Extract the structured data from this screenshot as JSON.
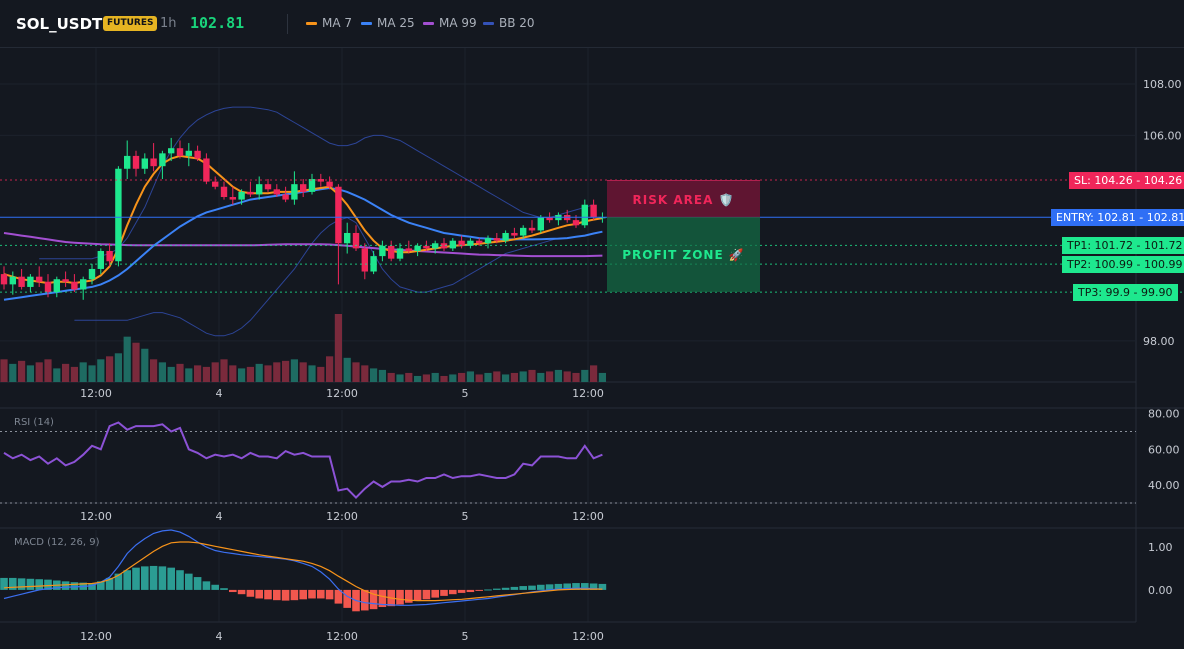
{
  "header": {
    "symbol": "SOL_USDT",
    "badge": "FUTURES",
    "timeframe": "1h",
    "last_price": "102.81",
    "indicators": [
      {
        "label": "MA 7",
        "color": "#f7931a"
      },
      {
        "label": "MA 25",
        "color": "#3b82f6"
      },
      {
        "label": "MA 99",
        "color": "#a34fd1"
      },
      {
        "label": "BB 20",
        "color": "#3452b8"
      }
    ]
  },
  "colors": {
    "up": "#1ee88e",
    "down": "#f0265a",
    "volume_up": "#1e6b62",
    "volume_down": "#7a2a3c"
  },
  "chart_data": [
    {
      "type": "candlestick",
      "title": "",
      "yticks": [
        "108.00",
        "106.00",
        "98.00"
      ],
      "xticks": [
        "12:00",
        "4",
        "12:00",
        "5",
        "12:00"
      ],
      "ylim": [
        96.4,
        109.4
      ],
      "candles": [
        {
          "o": 100.6,
          "h": 100.9,
          "l": 100.0,
          "c": 100.2
        },
        {
          "o": 100.2,
          "h": 100.7,
          "l": 99.8,
          "c": 100.5
        },
        {
          "o": 100.5,
          "h": 100.8,
          "l": 100.0,
          "c": 100.1
        },
        {
          "o": 100.1,
          "h": 100.6,
          "l": 99.9,
          "c": 100.5
        },
        {
          "o": 100.5,
          "h": 100.9,
          "l": 100.1,
          "c": 100.3
        },
        {
          "o": 100.3,
          "h": 100.6,
          "l": 99.7,
          "c": 99.9
        },
        {
          "o": 99.9,
          "h": 100.5,
          "l": 99.7,
          "c": 100.4
        },
        {
          "o": 100.4,
          "h": 100.7,
          "l": 100.1,
          "c": 100.3
        },
        {
          "o": 100.3,
          "h": 100.6,
          "l": 99.9,
          "c": 100.0
        },
        {
          "o": 100.0,
          "h": 100.5,
          "l": 99.6,
          "c": 100.4
        },
        {
          "o": 100.4,
          "h": 101.0,
          "l": 100.2,
          "c": 100.8
        },
        {
          "o": 100.8,
          "h": 101.6,
          "l": 100.6,
          "c": 101.5
        },
        {
          "o": 101.5,
          "h": 101.8,
          "l": 100.9,
          "c": 101.1
        },
        {
          "o": 101.1,
          "h": 104.8,
          "l": 100.9,
          "c": 104.7
        },
        {
          "o": 104.7,
          "h": 105.8,
          "l": 104.3,
          "c": 105.2
        },
        {
          "o": 105.2,
          "h": 105.4,
          "l": 104.4,
          "c": 104.7
        },
        {
          "o": 104.7,
          "h": 105.3,
          "l": 104.5,
          "c": 105.1
        },
        {
          "o": 105.1,
          "h": 105.7,
          "l": 104.6,
          "c": 104.8
        },
        {
          "o": 104.8,
          "h": 105.4,
          "l": 104.3,
          "c": 105.3
        },
        {
          "o": 105.3,
          "h": 105.9,
          "l": 105.0,
          "c": 105.5
        },
        {
          "o": 105.5,
          "h": 105.8,
          "l": 105.1,
          "c": 105.2
        },
        {
          "o": 105.2,
          "h": 105.7,
          "l": 104.8,
          "c": 105.4
        },
        {
          "o": 105.4,
          "h": 105.6,
          "l": 105.0,
          "c": 105.1
        },
        {
          "o": 105.1,
          "h": 105.3,
          "l": 104.1,
          "c": 104.2
        },
        {
          "o": 104.2,
          "h": 104.4,
          "l": 103.9,
          "c": 104.0
        },
        {
          "o": 104.0,
          "h": 104.2,
          "l": 103.5,
          "c": 103.6
        },
        {
          "o": 103.6,
          "h": 104.0,
          "l": 103.3,
          "c": 103.5
        },
        {
          "o": 103.5,
          "h": 103.9,
          "l": 103.3,
          "c": 103.8
        },
        {
          "o": 103.8,
          "h": 104.2,
          "l": 103.6,
          "c": 103.7
        },
        {
          "o": 103.7,
          "h": 104.4,
          "l": 103.5,
          "c": 104.1
        },
        {
          "o": 104.1,
          "h": 104.3,
          "l": 103.8,
          "c": 103.9
        },
        {
          "o": 103.9,
          "h": 104.1,
          "l": 103.6,
          "c": 103.7
        },
        {
          "o": 103.7,
          "h": 104.0,
          "l": 103.4,
          "c": 103.5
        },
        {
          "o": 103.5,
          "h": 104.6,
          "l": 103.3,
          "c": 104.1
        },
        {
          "o": 104.1,
          "h": 104.3,
          "l": 103.6,
          "c": 103.8
        },
        {
          "o": 103.8,
          "h": 104.5,
          "l": 103.7,
          "c": 104.3
        },
        {
          "o": 104.3,
          "h": 104.5,
          "l": 104.0,
          "c": 104.2
        },
        {
          "o": 104.2,
          "h": 104.4,
          "l": 103.9,
          "c": 104.0
        },
        {
          "o": 104.0,
          "h": 104.1,
          "l": 100.2,
          "c": 101.8
        },
        {
          "o": 101.8,
          "h": 102.6,
          "l": 101.4,
          "c": 102.2
        },
        {
          "o": 102.2,
          "h": 102.5,
          "l": 101.5,
          "c": 101.6
        },
        {
          "o": 101.6,
          "h": 101.8,
          "l": 100.4,
          "c": 100.7
        },
        {
          "o": 100.7,
          "h": 101.5,
          "l": 100.6,
          "c": 101.3
        },
        {
          "o": 101.3,
          "h": 101.9,
          "l": 101.1,
          "c": 101.7
        },
        {
          "o": 101.7,
          "h": 101.9,
          "l": 101.1,
          "c": 101.2
        },
        {
          "o": 101.2,
          "h": 101.8,
          "l": 101.1,
          "c": 101.6
        },
        {
          "o": 101.6,
          "h": 101.9,
          "l": 101.4,
          "c": 101.5
        },
        {
          "o": 101.5,
          "h": 101.8,
          "l": 101.3,
          "c": 101.7
        },
        {
          "o": 101.7,
          "h": 101.9,
          "l": 101.5,
          "c": 101.6
        },
        {
          "o": 101.6,
          "h": 101.9,
          "l": 101.4,
          "c": 101.8
        },
        {
          "o": 101.8,
          "h": 102.0,
          "l": 101.5,
          "c": 101.6
        },
        {
          "o": 101.6,
          "h": 102.0,
          "l": 101.5,
          "c": 101.9
        },
        {
          "o": 101.9,
          "h": 102.1,
          "l": 101.6,
          "c": 101.7
        },
        {
          "o": 101.7,
          "h": 102.0,
          "l": 101.6,
          "c": 101.9
        },
        {
          "o": 101.9,
          "h": 102.0,
          "l": 101.7,
          "c": 101.8
        },
        {
          "o": 101.8,
          "h": 102.1,
          "l": 101.6,
          "c": 102.0
        },
        {
          "o": 102.0,
          "h": 102.2,
          "l": 101.8,
          "c": 101.9
        },
        {
          "o": 101.9,
          "h": 102.3,
          "l": 101.8,
          "c": 102.2
        },
        {
          "o": 102.2,
          "h": 102.4,
          "l": 102.0,
          "c": 102.1
        },
        {
          "o": 102.1,
          "h": 102.5,
          "l": 102.0,
          "c": 102.4
        },
        {
          "o": 102.4,
          "h": 102.7,
          "l": 102.2,
          "c": 102.3
        },
        {
          "o": 102.3,
          "h": 102.9,
          "l": 102.2,
          "c": 102.8
        },
        {
          "o": 102.8,
          "h": 103.0,
          "l": 102.6,
          "c": 102.7
        },
        {
          "o": 102.7,
          "h": 103.0,
          "l": 102.5,
          "c": 102.9
        },
        {
          "o": 102.9,
          "h": 103.1,
          "l": 102.6,
          "c": 102.7
        },
        {
          "o": 102.7,
          "h": 102.9,
          "l": 102.4,
          "c": 102.5
        },
        {
          "o": 102.5,
          "h": 103.5,
          "l": 102.4,
          "c": 103.3
        },
        {
          "o": 103.3,
          "h": 103.5,
          "l": 102.7,
          "c": 102.8
        },
        {
          "o": 102.8,
          "h": 103.0,
          "l": 102.6,
          "c": 102.81
        }
      ],
      "volume": [
        30,
        24,
        28,
        22,
        26,
        30,
        18,
        24,
        20,
        26,
        22,
        30,
        34,
        38,
        60,
        52,
        44,
        30,
        26,
        20,
        24,
        18,
        22,
        20,
        26,
        30,
        22,
        18,
        20,
        24,
        22,
        26,
        28,
        30,
        26,
        22,
        20,
        34,
        90,
        32,
        26,
        22,
        18,
        16,
        12,
        10,
        12,
        8,
        10,
        12,
        8,
        10,
        12,
        14,
        10,
        12,
        14,
        10,
        12,
        14,
        16,
        12,
        14,
        16,
        14,
        12,
        16,
        22,
        12
      ],
      "ma7": [
        100.6,
        100.5,
        100.4,
        100.35,
        100.3,
        100.25,
        100.3,
        100.3,
        100.25,
        100.3,
        100.35,
        100.55,
        100.9,
        101.6,
        102.5,
        103.3,
        104.0,
        104.5,
        104.9,
        105.1,
        105.2,
        105.15,
        105.1,
        104.9,
        104.6,
        104.3,
        104.0,
        103.8,
        103.75,
        103.75,
        103.75,
        103.8,
        103.8,
        103.8,
        103.85,
        103.9,
        103.95,
        104.0,
        103.7,
        103.3,
        102.8,
        102.3,
        101.9,
        101.6,
        101.5,
        101.45,
        101.45,
        101.5,
        101.55,
        101.6,
        101.65,
        101.7,
        101.72,
        101.75,
        101.78,
        101.82,
        101.86,
        101.9,
        101.95,
        102.02,
        102.1,
        102.2,
        102.3,
        102.4,
        102.5,
        102.55,
        102.65,
        102.72,
        102.78
      ],
      "ma25": [
        99.6,
        99.65,
        99.7,
        99.75,
        99.8,
        99.85,
        99.9,
        99.95,
        100.0,
        100.05,
        100.1,
        100.2,
        100.35,
        100.55,
        100.8,
        101.1,
        101.4,
        101.7,
        101.95,
        102.2,
        102.45,
        102.65,
        102.85,
        103.0,
        103.1,
        103.2,
        103.3,
        103.4,
        103.5,
        103.55,
        103.6,
        103.65,
        103.7,
        103.75,
        103.8,
        103.85,
        103.9,
        103.95,
        103.9,
        103.8,
        103.65,
        103.5,
        103.3,
        103.1,
        102.9,
        102.75,
        102.6,
        102.5,
        102.4,
        102.3,
        102.2,
        102.15,
        102.1,
        102.05,
        102.0,
        101.98,
        101.96,
        101.95,
        101.95,
        101.95,
        101.95,
        101.96,
        101.97,
        101.98,
        102.0,
        102.05,
        102.1,
        102.18,
        102.25
      ],
      "ma99": [
        102.2,
        102.15,
        102.1,
        102.05,
        102.0,
        101.95,
        101.9,
        101.85,
        101.82,
        101.8,
        101.78,
        101.76,
        101.75,
        101.74,
        101.73,
        101.72,
        101.72,
        101.72,
        101.72,
        101.72,
        101.72,
        101.72,
        101.72,
        101.72,
        101.72,
        101.72,
        101.72,
        101.72,
        101.72,
        101.73,
        101.74,
        101.75,
        101.76,
        101.76,
        101.76,
        101.76,
        101.76,
        101.75,
        101.73,
        101.7,
        101.67,
        101.64,
        101.61,
        101.58,
        101.56,
        101.54,
        101.52,
        101.5,
        101.48,
        101.46,
        101.44,
        101.42,
        101.4,
        101.38,
        101.36,
        101.35,
        101.34,
        101.33,
        101.32,
        101.31,
        101.3,
        101.3,
        101.3,
        101.3,
        101.3,
        101.3,
        101.3,
        101.31,
        101.32
      ],
      "bb_upper": [
        101.2,
        101.2,
        101.2,
        101.2,
        101.2,
        101.2,
        101.2,
        101.3,
        101.4,
        101.6,
        102.0,
        102.6,
        103.2,
        104.0,
        104.8,
        105.4,
        105.9,
        106.3,
        106.6,
        106.8,
        106.95,
        107.05,
        107.1,
        107.1,
        107.1,
        107.05,
        107.0,
        106.9,
        106.7,
        106.5,
        106.3,
        106.1,
        105.9,
        105.7,
        105.6,
        105.6,
        105.7,
        105.9,
        106.0,
        106.0,
        105.9,
        105.8,
        105.6,
        105.4,
        105.2,
        105.0,
        104.8,
        104.6,
        104.4,
        104.2,
        104.0,
        103.8,
        103.6,
        103.4,
        103.2,
        103.0,
        102.9,
        102.8,
        102.8,
        102.9,
        103.0,
        103.1,
        103.2,
        103.3
      ],
      "bb_lower": [
        98.8,
        98.8,
        98.8,
        98.8,
        98.8,
        98.8,
        98.8,
        98.9,
        99.0,
        99.1,
        99.1,
        99.0,
        98.9,
        98.7,
        98.5,
        98.3,
        98.2,
        98.2,
        98.3,
        98.5,
        98.8,
        99.2,
        99.6,
        100.0,
        100.4,
        100.8,
        101.3,
        101.8,
        102.2,
        102.5,
        102.7,
        102.8,
        102.6,
        102.0,
        101.4,
        100.8,
        100.4,
        100.1,
        100.0,
        99.9,
        99.9,
        100.0,
        100.1,
        100.2,
        100.4,
        100.6,
        100.8,
        101.0,
        101.2,
        101.4,
        101.5,
        101.6,
        101.7,
        101.8,
        101.9,
        102.0
      ],
      "levels": [
        {
          "label": "SL: 104.26",
          "value": "104.26",
          "price": 104.26,
          "color": "#f0265a"
        },
        {
          "label": "ENTRY: 102.81",
          "value": "102.81",
          "price": 102.81,
          "color": "#2f6ff5"
        },
        {
          "label": "TP1: 101.72",
          "value": "101.72",
          "price": 101.72,
          "color": "#1ee88e"
        },
        {
          "label": "TP2: 100.99",
          "value": "100.99",
          "price": 100.99,
          "color": "#1ee88e"
        },
        {
          "label": "TP3: 99.9",
          "value": "99.90",
          "price": 99.9,
          "color": "#1ee88e"
        }
      ],
      "risk_label": "RISK AREA 🛡️",
      "profit_label": "PROFIT ZONE 🚀"
    },
    {
      "type": "line",
      "title": "RSI (14)",
      "yticks": [
        "80.00",
        "60.00",
        "40.00"
      ],
      "xticks": [
        "12:00",
        "4",
        "12:00",
        "5",
        "12:00"
      ],
      "ylim": [
        30,
        82
      ],
      "levels": [
        70,
        30
      ],
      "values": [
        58,
        55,
        57,
        54,
        56,
        52,
        55,
        51,
        53,
        57,
        62,
        60,
        73,
        75,
        71,
        73,
        73,
        73,
        74,
        70,
        72,
        60,
        58,
        55,
        57,
        56,
        57,
        55,
        58,
        56,
        56,
        55,
        59,
        57,
        58,
        56,
        56,
        56,
        37,
        38,
        33,
        38,
        42,
        39,
        42,
        42,
        43,
        42,
        44,
        44,
        46,
        44,
        45,
        45,
        46,
        45,
        44,
        44,
        46,
        52,
        51,
        56,
        56,
        56,
        55,
        55,
        62,
        55,
        57
      ]
    },
    {
      "type": "bar",
      "title": "MACD (12, 26, 9)",
      "yticks": [
        "1.00",
        "0.00"
      ],
      "xticks": [
        "12:00",
        "4",
        "12:00",
        "5",
        "12:00"
      ],
      "ylim": [
        -0.75,
        1.4
      ],
      "histogram": [
        0.28,
        0.28,
        0.27,
        0.26,
        0.25,
        0.24,
        0.22,
        0.2,
        0.18,
        0.17,
        0.16,
        0.2,
        0.28,
        0.38,
        0.46,
        0.52,
        0.55,
        0.56,
        0.55,
        0.52,
        0.46,
        0.38,
        0.3,
        0.2,
        0.12,
        0.04,
        -0.05,
        -0.1,
        -0.16,
        -0.2,
        -0.22,
        -0.24,
        -0.25,
        -0.24,
        -0.22,
        -0.2,
        -0.2,
        -0.22,
        -0.32,
        -0.42,
        -0.5,
        -0.48,
        -0.45,
        -0.4,
        -0.38,
        -0.34,
        -0.3,
        -0.26,
        -0.22,
        -0.18,
        -0.14,
        -0.1,
        -0.07,
        -0.05,
        -0.02,
        0.01,
        0.03,
        0.05,
        0.07,
        0.09,
        0.1,
        0.12,
        0.13,
        0.14,
        0.15,
        0.16,
        0.16,
        0.15,
        0.14
      ],
      "macd": [
        -0.2,
        -0.15,
        -0.1,
        -0.05,
        0.0,
        0.03,
        0.05,
        0.06,
        0.07,
        0.08,
        0.1,
        0.18,
        0.3,
        0.55,
        0.85,
        1.05,
        1.2,
        1.32,
        1.38,
        1.4,
        1.35,
        1.25,
        1.12,
        1.0,
        0.92,
        0.88,
        0.85,
        0.82,
        0.8,
        0.78,
        0.76,
        0.74,
        0.72,
        0.68,
        0.62,
        0.55,
        0.42,
        0.25,
        0.02,
        -0.15,
        -0.25,
        -0.3,
        -0.32,
        -0.34,
        -0.35,
        -0.36,
        -0.36,
        -0.35,
        -0.34,
        -0.32,
        -0.3,
        -0.28,
        -0.26,
        -0.24,
        -0.22,
        -0.2,
        -0.17,
        -0.14,
        -0.11,
        -0.08,
        -0.05,
        -0.02,
        0.0,
        0.02,
        0.03,
        0.04,
        0.04,
        0.03,
        0.02
      ],
      "signal": [
        0.05,
        0.06,
        0.07,
        0.08,
        0.09,
        0.1,
        0.11,
        0.12,
        0.13,
        0.14,
        0.15,
        0.18,
        0.24,
        0.34,
        0.48,
        0.62,
        0.76,
        0.9,
        1.02,
        1.1,
        1.12,
        1.12,
        1.1,
        1.06,
        1.02,
        0.98,
        0.94,
        0.9,
        0.86,
        0.82,
        0.79,
        0.76,
        0.73,
        0.7,
        0.67,
        0.62,
        0.55,
        0.45,
        0.32,
        0.2,
        0.08,
        -0.02,
        -0.1,
        -0.15,
        -0.19,
        -0.22,
        -0.24,
        -0.25,
        -0.25,
        -0.25,
        -0.24,
        -0.23,
        -0.22,
        -0.2,
        -0.18,
        -0.16,
        -0.14,
        -0.12,
        -0.1,
        -0.08,
        -0.06,
        -0.04,
        -0.02,
        0.0,
        0.01,
        0.02,
        0.02,
        0.02,
        0.02
      ]
    }
  ]
}
